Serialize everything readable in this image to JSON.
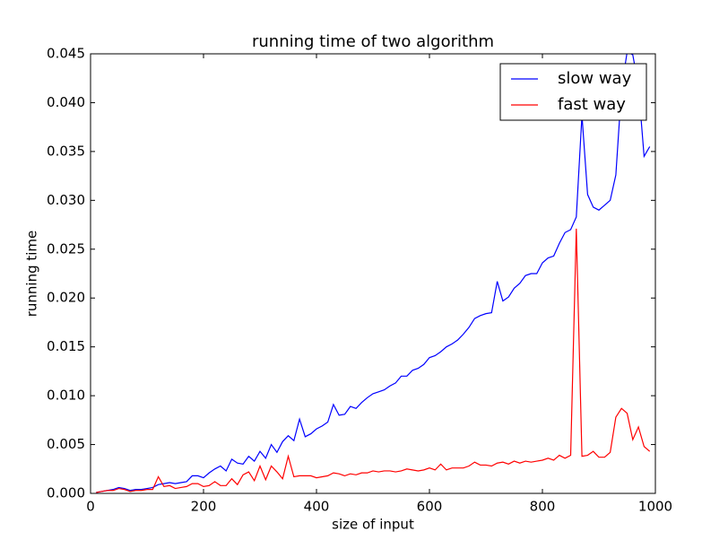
{
  "chart_data": {
    "type": "line",
    "title": "running time of two algorithm",
    "x_label": "size of input",
    "y_label": "running time",
    "x": [
      10,
      20,
      30,
      40,
      50,
      60,
      70,
      80,
      90,
      100,
      110,
      120,
      130,
      140,
      150,
      160,
      170,
      180,
      190,
      200,
      210,
      220,
      230,
      240,
      250,
      260,
      270,
      280,
      290,
      300,
      310,
      320,
      330,
      340,
      350,
      360,
      370,
      380,
      390,
      400,
      410,
      420,
      430,
      440,
      450,
      460,
      470,
      480,
      490,
      500,
      510,
      520,
      530,
      540,
      550,
      560,
      570,
      580,
      590,
      600,
      610,
      620,
      630,
      640,
      650,
      660,
      670,
      680,
      690,
      700,
      710,
      720,
      730,
      740,
      750,
      760,
      770,
      780,
      790,
      800,
      810,
      820,
      830,
      840,
      850,
      860,
      870,
      880,
      890,
      900,
      910,
      920,
      930,
      940,
      950,
      960,
      970,
      980,
      990
    ],
    "series": [
      {
        "name": "slow way",
        "color": "#0000ff",
        "values": [
          0.0001,
          0.0002,
          0.0003,
          0.0004,
          0.0006,
          0.0005,
          0.0003,
          0.0004,
          0.0004,
          0.0005,
          0.0006,
          0.0009,
          0.001,
          0.0011,
          0.001,
          0.0011,
          0.0012,
          0.0018,
          0.0018,
          0.0016,
          0.0021,
          0.0025,
          0.0028,
          0.0023,
          0.0035,
          0.0031,
          0.003,
          0.0038,
          0.0033,
          0.0043,
          0.0036,
          0.005,
          0.0042,
          0.0053,
          0.0059,
          0.0054,
          0.0076,
          0.0058,
          0.0061,
          0.0066,
          0.0069,
          0.0073,
          0.0091,
          0.008,
          0.0081,
          0.0089,
          0.0087,
          0.0093,
          0.0098,
          0.0102,
          0.0104,
          0.0106,
          0.011,
          0.0113,
          0.012,
          0.012,
          0.0126,
          0.0128,
          0.0132,
          0.0139,
          0.0141,
          0.0145,
          0.015,
          0.0153,
          0.0157,
          0.0163,
          0.017,
          0.0179,
          0.0182,
          0.0184,
          0.0185,
          0.0217,
          0.0197,
          0.0201,
          0.021,
          0.0215,
          0.0223,
          0.0225,
          0.0225,
          0.0236,
          0.0241,
          0.0243,
          0.0256,
          0.0267,
          0.027,
          0.0283,
          0.0387,
          0.0306,
          0.0293,
          0.029,
          0.0295,
          0.03,
          0.0326,
          0.0414,
          0.0452,
          0.0449,
          0.0417,
          0.0345,
          0.0355
        ]
      },
      {
        "name": "fast way",
        "color": "#ff0000",
        "values": [
          0.0001,
          0.0002,
          0.0003,
          0.0003,
          0.0005,
          0.0004,
          0.0002,
          0.0003,
          0.0003,
          0.0004,
          0.0004,
          0.0017,
          0.0007,
          0.0008,
          0.0005,
          0.0006,
          0.0007,
          0.001,
          0.001,
          0.0007,
          0.0008,
          0.0012,
          0.0008,
          0.0008,
          0.0015,
          0.0009,
          0.0019,
          0.0022,
          0.0013,
          0.0028,
          0.0014,
          0.0028,
          0.0022,
          0.0015,
          0.0038,
          0.0017,
          0.0018,
          0.0018,
          0.0018,
          0.0016,
          0.0017,
          0.0018,
          0.0021,
          0.002,
          0.0018,
          0.002,
          0.0019,
          0.0021,
          0.0021,
          0.0023,
          0.0022,
          0.0023,
          0.0023,
          0.0022,
          0.0023,
          0.0025,
          0.0024,
          0.0023,
          0.0024,
          0.0026,
          0.0024,
          0.003,
          0.0024,
          0.0026,
          0.0026,
          0.0026,
          0.0028,
          0.0032,
          0.0029,
          0.0029,
          0.0028,
          0.0031,
          0.0032,
          0.003,
          0.0033,
          0.0031,
          0.0033,
          0.0032,
          0.0033,
          0.0034,
          0.0036,
          0.0034,
          0.0039,
          0.0036,
          0.0039,
          0.0271,
          0.0038,
          0.0039,
          0.0043,
          0.0037,
          0.0037,
          0.0042,
          0.0078,
          0.0087,
          0.0082,
          0.0055,
          0.0068,
          0.0048,
          0.0043
        ]
      }
    ],
    "xlim": [
      0,
      1000
    ],
    "xticks": [
      0,
      200,
      400,
      600,
      800,
      1000
    ],
    "ylim": [
      0,
      0.045
    ],
    "yticks": [
      {
        "value": 0,
        "label": "0.000"
      },
      {
        "value": 0.005,
        "label": "0.005"
      },
      {
        "value": 0.01,
        "label": "0.010"
      },
      {
        "value": 0.015,
        "label": "0.015"
      },
      {
        "value": 0.02,
        "label": "0.020"
      },
      {
        "value": 0.025,
        "label": "0.025"
      },
      {
        "value": 0.03,
        "label": "0.030"
      },
      {
        "value": 0.035,
        "label": "0.035"
      },
      {
        "value": 0.04,
        "label": "0.040"
      },
      {
        "value": 0.045,
        "label": "0.045"
      }
    ],
    "legend": "upper right",
    "grid": false
  }
}
